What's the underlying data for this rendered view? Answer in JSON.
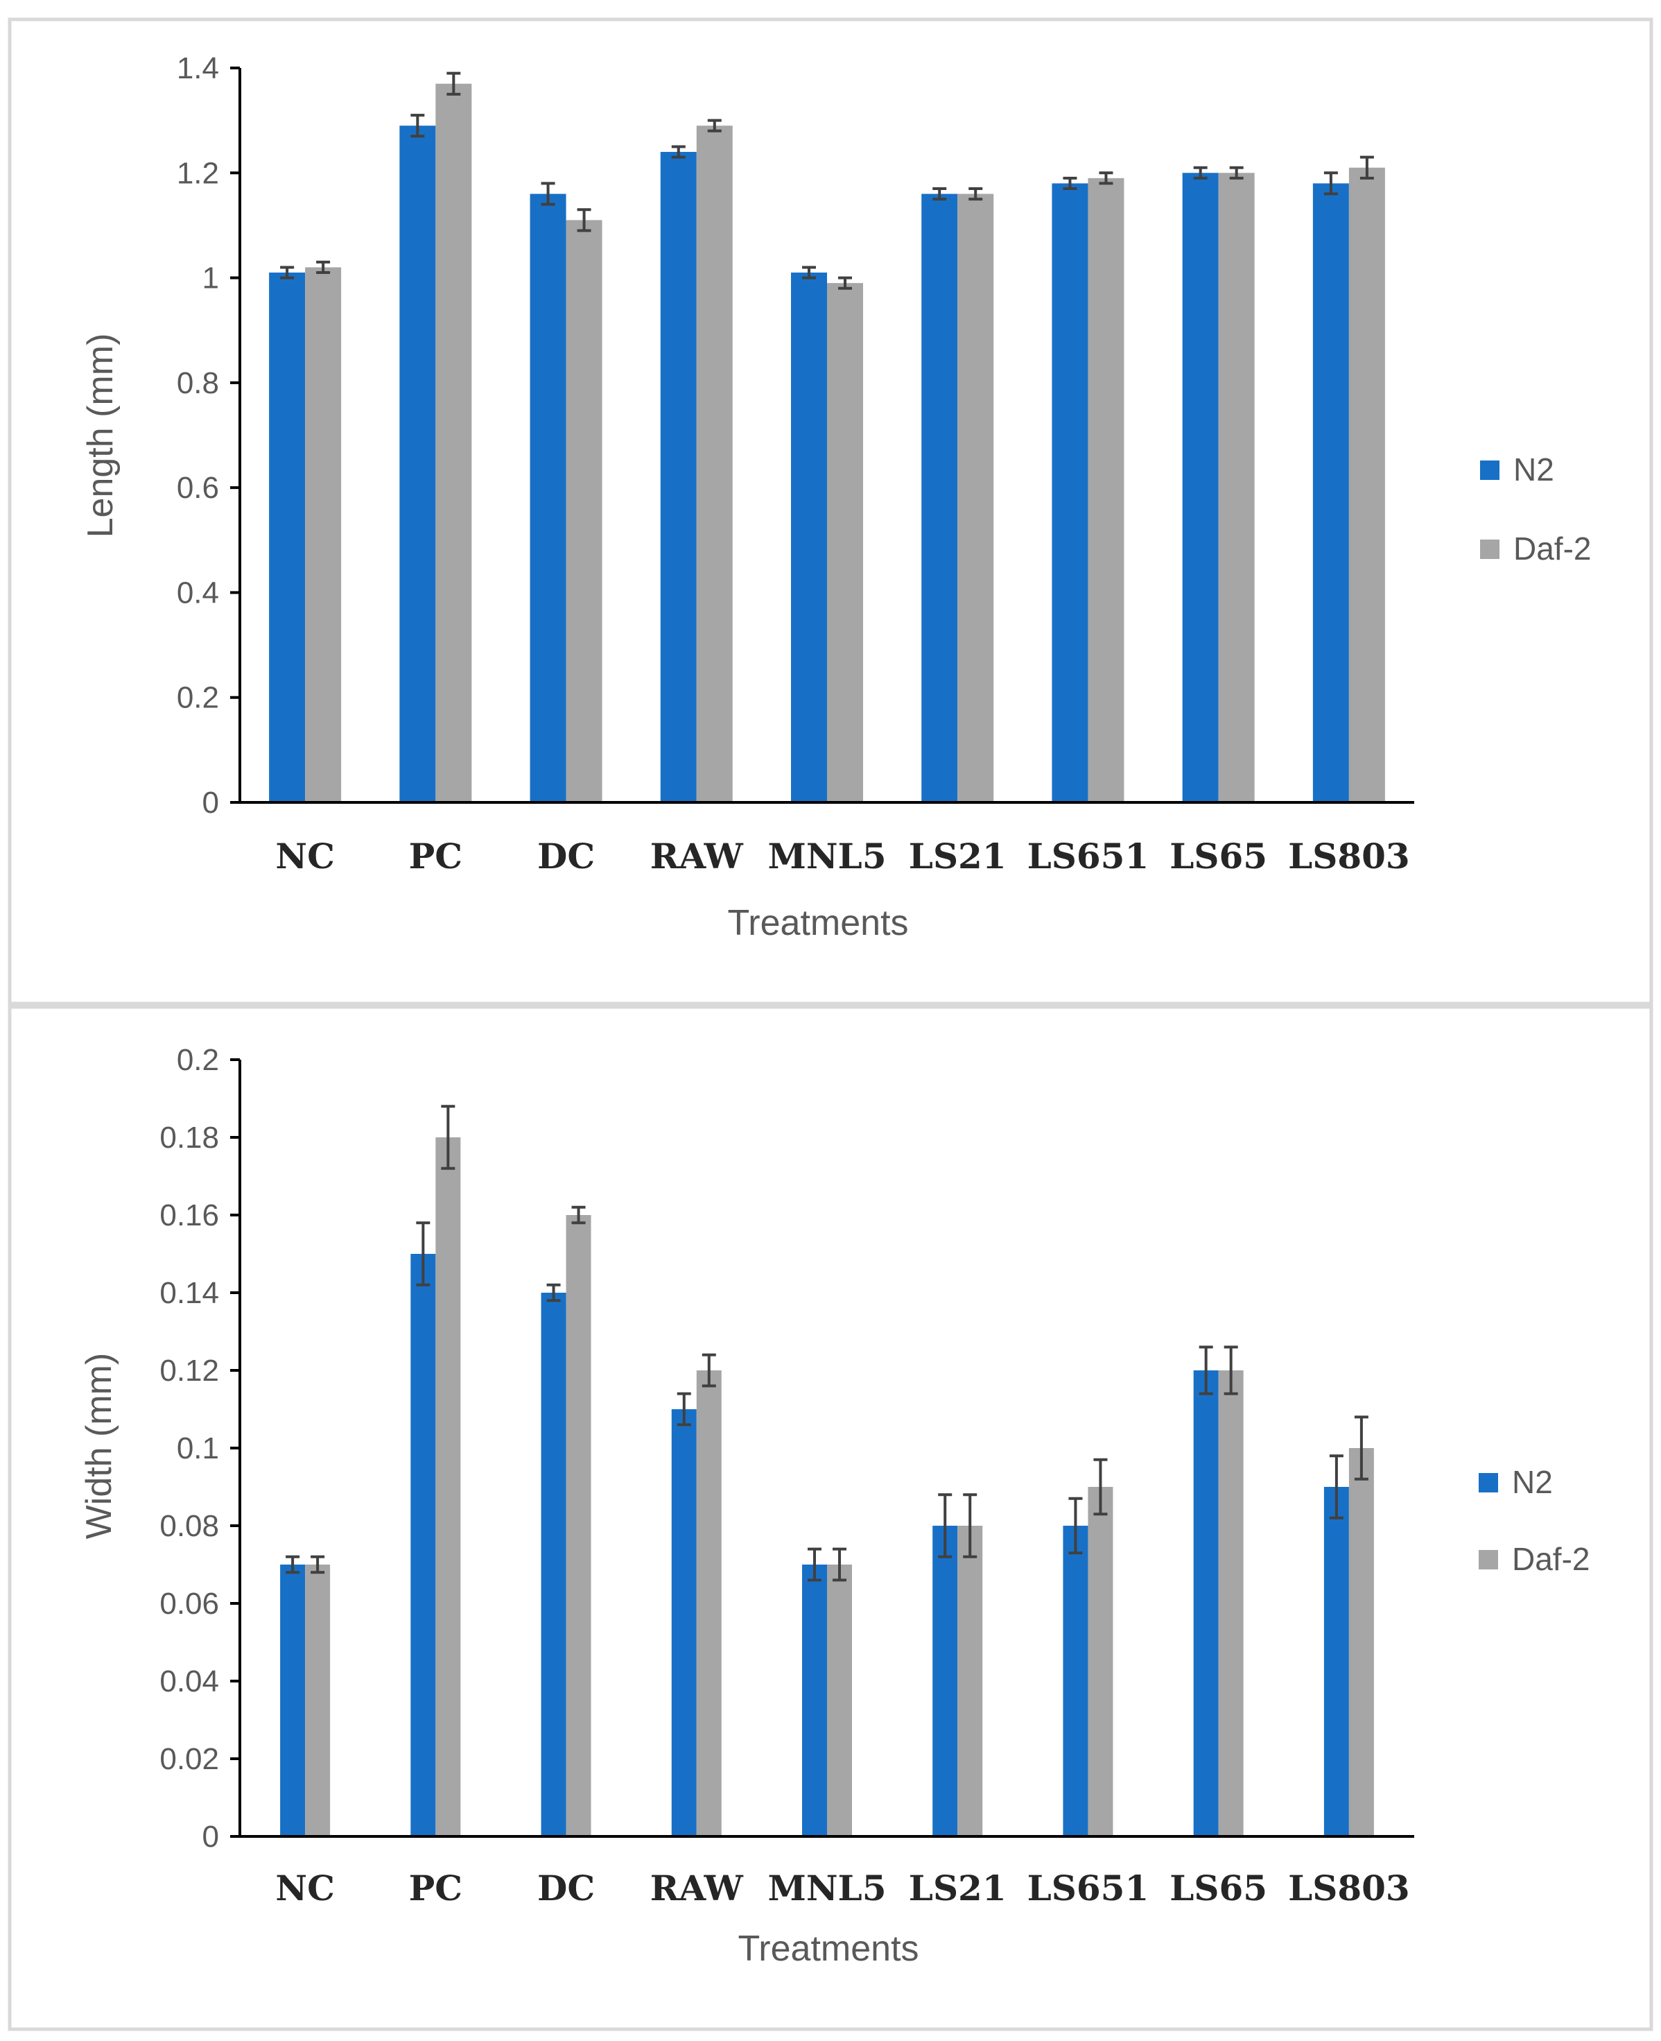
{
  "chart_data": [
    {
      "type": "bar",
      "title": "",
      "xlabel": "Treatments",
      "ylabel": "Length (mm)",
      "ylim": [
        0,
        1.4
      ],
      "ytick_values": [
        0,
        0.2,
        0.4,
        0.6,
        0.8,
        1,
        1.2,
        1.4
      ],
      "ytick_labels": [
        "0",
        "0.2",
        "0.4",
        "0.6",
        "0.8",
        "1",
        "1.2",
        "1.4"
      ],
      "categories": [
        "NC",
        "PC",
        "DC",
        "RAW",
        "MNL5",
        "LS21",
        "LS651",
        "LS65",
        "LS803"
      ],
      "series": [
        {
          "name": "N2",
          "color": "#1870C6",
          "values": [
            1.01,
            1.29,
            1.16,
            1.24,
            1.01,
            1.16,
            1.18,
            1.2,
            1.18
          ],
          "errors": [
            0.01,
            0.02,
            0.02,
            0.01,
            0.01,
            0.01,
            0.01,
            0.01,
            0.02
          ]
        },
        {
          "name": "Daf-2",
          "color": "#A6A6A6",
          "values": [
            1.02,
            1.37,
            1.11,
            1.29,
            0.99,
            1.16,
            1.19,
            1.2,
            1.21
          ],
          "errors": [
            0.01,
            0.02,
            0.02,
            0.01,
            0.01,
            0.01,
            0.01,
            0.01,
            0.02
          ]
        }
      ],
      "grid": false,
      "legend": "right"
    },
    {
      "type": "bar",
      "title": "",
      "xlabel": "Treatments",
      "ylabel": "Width (mm)",
      "ylim": [
        0,
        0.2
      ],
      "ytick_values": [
        0,
        0.02,
        0.04,
        0.06,
        0.08,
        0.1,
        0.12,
        0.14,
        0.16,
        0.18,
        0.2
      ],
      "ytick_labels": [
        "0",
        "0.02",
        "0.04",
        "0.06",
        "0.08",
        "0.1",
        "0.12",
        "0.14",
        "0.16",
        "0.18",
        "0.2"
      ],
      "categories": [
        "NC",
        "PC",
        "DC",
        "RAW",
        "MNL5",
        "LS21",
        "LS651",
        "LS65",
        "LS803"
      ],
      "series": [
        {
          "name": "N2",
          "color": "#1870C6",
          "values": [
            0.07,
            0.15,
            0.14,
            0.11,
            0.07,
            0.08,
            0.08,
            0.12,
            0.09
          ],
          "errors": [
            0.002,
            0.008,
            0.002,
            0.004,
            0.004,
            0.008,
            0.007,
            0.006,
            0.008
          ]
        },
        {
          "name": "Daf-2",
          "color": "#A6A6A6",
          "values": [
            0.07,
            0.18,
            0.16,
            0.12,
            0.07,
            0.08,
            0.09,
            0.12,
            0.1
          ],
          "errors": [
            0.002,
            0.008,
            0.002,
            0.004,
            0.004,
            0.008,
            0.007,
            0.006,
            0.008
          ]
        }
      ],
      "grid": false,
      "legend": "right"
    }
  ]
}
